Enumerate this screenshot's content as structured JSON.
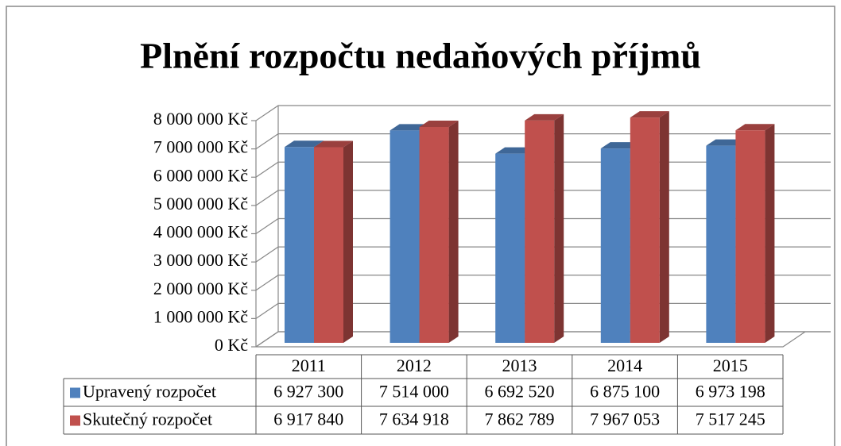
{
  "chart_data": {
    "type": "bar3d",
    "title": "Plnění rozpočtu nedaňových příjmů",
    "categories": [
      "2011",
      "2012",
      "2013",
      "2014",
      "2015"
    ],
    "series": [
      {
        "name": "Upravený rozpočet",
        "color": "#4f81bd",
        "values": [
          6927300,
          7514000,
          6692520,
          6875100,
          6973198
        ],
        "value_labels": [
          "6 927 300",
          "7 514 000",
          "6 692 520",
          "6 875 100",
          "6 973 198"
        ]
      },
      {
        "name": "Skutečný rozpočet",
        "color": "#c0504d",
        "values": [
          6917840,
          7634918,
          7862789,
          7967053,
          7517245
        ],
        "value_labels": [
          "6 917 840",
          "7 634 918",
          "7 862 789",
          "7 967 053",
          "7 517 245"
        ]
      }
    ],
    "ylim": [
      0,
      8000000
    ],
    "yticks": [
      {
        "value": 0,
        "label": "0 Kč"
      },
      {
        "value": 1000000,
        "label": "1 000 000 Kč"
      },
      {
        "value": 2000000,
        "label": "2 000 000 Kč"
      },
      {
        "value": 3000000,
        "label": "3 000 000 Kč"
      },
      {
        "value": 4000000,
        "label": "4 000 000 Kč"
      },
      {
        "value": 5000000,
        "label": "5 000 000 Kč"
      },
      {
        "value": 6000000,
        "label": "6 000 000 Kč"
      },
      {
        "value": 7000000,
        "label": "7 000 000 Kč"
      },
      {
        "value": 8000000,
        "label": "8 000 000 Kč"
      }
    ],
    "grid": true
  }
}
